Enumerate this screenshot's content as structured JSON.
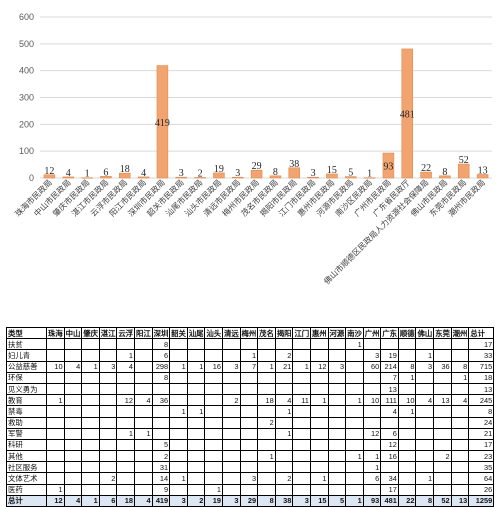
{
  "chart_data": {
    "type": "bar",
    "categories": [
      "珠海市民政局",
      "中山市民政局",
      "肇庆市民政局",
      "湛江市民政局",
      "云浮市民政局",
      "阳江市民政局",
      "深圳市民政局",
      "韶关市民政局",
      "汕尾市民政局",
      "汕头市民政局",
      "清远市民政局",
      "梅州市民政局",
      "茂名市民政局",
      "揭阳市民政局",
      "江门市民政局",
      "惠州市民政局",
      "河源市民政局",
      "南沙区民政局",
      "广州市民政局",
      "广东省民政厅",
      "佛山市顺德区民政局人力资源社会保障局",
      "佛山市民政局",
      "东莞市民政局",
      "潮州市民政局"
    ],
    "values": [
      12,
      4,
      1,
      6,
      18,
      4,
      419,
      3,
      2,
      19,
      3,
      29,
      8,
      38,
      3,
      15,
      5,
      1,
      93,
      481,
      22,
      8,
      52,
      13
    ],
    "ylim": [
      0,
      600
    ],
    "yticks": [
      0,
      100,
      200,
      300,
      400,
      500,
      600
    ],
    "grid": true,
    "bar_color": "#f2a470"
  },
  "table": {
    "header": [
      "类型",
      "珠海",
      "中山",
      "肇庆",
      "湛江",
      "云浮",
      "阳江",
      "深圳",
      "韶关",
      "汕尾",
      "汕头",
      "清远",
      "梅州",
      "茂名",
      "揭阳",
      "江门",
      "惠州",
      "河源",
      "南沙",
      "广州",
      "广东",
      "顺德",
      "佛山",
      "东莞",
      "潮州",
      "总计"
    ],
    "rows": [
      [
        "扶贫",
        "",
        "",
        "",
        "",
        "",
        "",
        "8",
        "",
        "",
        "",
        "",
        "",
        "",
        "",
        "",
        "",
        "",
        "1",
        "",
        "",
        "",
        "",
        "",
        "",
        "17"
      ],
      [
        "妇儿青",
        "",
        "",
        "",
        "",
        "1",
        "",
        "6",
        "",
        "",
        "",
        "",
        "1",
        "",
        "2",
        "",
        "",
        "",
        "",
        "3",
        "19",
        "",
        "1",
        "",
        "",
        "33"
      ],
      [
        "公益慈善",
        "10",
        "4",
        "1",
        "3",
        "4",
        "",
        "298",
        "1",
        "1",
        "16",
        "3",
        "7",
        "1",
        "21",
        "1",
        "12",
        "3",
        "",
        "60",
        "214",
        "8",
        "3",
        "36",
        "8",
        "715"
      ],
      [
        "环保",
        "",
        "",
        "",
        "",
        "",
        "",
        "8",
        "",
        "",
        "",
        "",
        "",
        "",
        "",
        "",
        "",
        "",
        "",
        "",
        "7",
        "1",
        "",
        "",
        "1",
        "18"
      ],
      [
        "见义勇为",
        "",
        "",
        "",
        "",
        "",
        "",
        "",
        "",
        "",
        "",
        "",
        "",
        "",
        "",
        "",
        "",
        "",
        "",
        "",
        "13",
        "",
        "",
        "",
        "",
        "13"
      ],
      [
        "教育",
        "1",
        "",
        "",
        "",
        "12",
        "4",
        "36",
        "",
        "",
        "",
        "2",
        "",
        "18",
        "4",
        "11",
        "1",
        "",
        "1",
        "10",
        "111",
        "10",
        "4",
        "13",
        "4",
        "245"
      ],
      [
        "禁毒",
        "",
        "",
        "",
        "",
        "",
        "",
        "",
        "1",
        "1",
        "",
        "",
        "",
        "",
        "1",
        "",
        "",
        "",
        "",
        "",
        "4",
        "1",
        "",
        "",
        "",
        "8"
      ],
      [
        "救助",
        "",
        "",
        "",
        "",
        "",
        "",
        "",
        "",
        "",
        "",
        "",
        "",
        "2",
        "",
        "",
        "",
        "",
        "",
        "",
        "",
        "",
        "",
        "",
        "",
        "24"
      ],
      [
        "军警",
        "",
        "",
        "",
        "",
        "1",
        "1",
        "",
        "",
        "",
        "",
        "",
        "",
        "",
        "1",
        "",
        "",
        "",
        "",
        "12",
        "6",
        "",
        "",
        "",
        "",
        "21"
      ],
      [
        "科研",
        "",
        "",
        "",
        "",
        "",
        "",
        "5",
        "",
        "",
        "",
        "",
        "",
        "",
        "",
        "",
        "",
        "",
        "",
        "",
        "12",
        "",
        "",
        "",
        "",
        "17"
      ],
      [
        "其他",
        "",
        "",
        "",
        "",
        "",
        "",
        "2",
        "",
        "",
        "",
        "",
        "",
        "1",
        "",
        "",
        "",
        "",
        "1",
        "1",
        "16",
        "",
        "",
        "2",
        "",
        "23"
      ],
      [
        "社区服务",
        "",
        "",
        "",
        "",
        "",
        "",
        "31",
        "",
        "",
        "",
        "",
        "",
        "",
        "",
        "",
        "",
        "",
        "",
        "1",
        "",
        "",
        "",
        "",
        "",
        "35"
      ],
      [
        "文体艺术",
        "",
        "",
        "",
        "2",
        "",
        "",
        "14",
        "1",
        "",
        "",
        "",
        "3",
        "",
        "2",
        "",
        "1",
        "",
        "",
        "6",
        "34",
        "",
        "1",
        "",
        "",
        "64"
      ],
      [
        "医药",
        "1",
        "",
        "",
        "",
        "",
        "",
        "9",
        "",
        "",
        "1",
        "",
        "",
        "",
        "",
        "",
        "",
        "",
        "",
        "",
        "17",
        "",
        "",
        "",
        "",
        "26"
      ]
    ],
    "total": [
      "总计",
      "12",
      "4",
      "1",
      "6",
      "18",
      "4",
      "419",
      "3",
      "2",
      "19",
      "3",
      "29",
      "8",
      "38",
      "3",
      "15",
      "5",
      "1",
      "93",
      "481",
      "22",
      "8",
      "52",
      "13",
      "1259"
    ]
  }
}
